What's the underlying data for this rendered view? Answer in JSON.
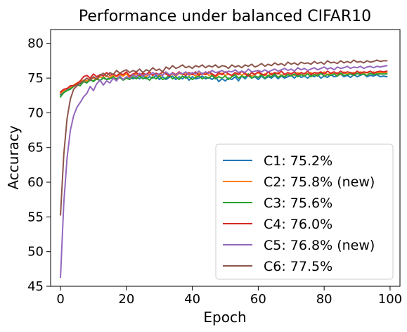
{
  "chart_data": {
    "type": "line",
    "title": "Performance under balanced CIFAR10",
    "xlabel": "Epoch",
    "ylabel": "Accuracy",
    "xlim": [
      -3,
      103
    ],
    "ylim": [
      45,
      82
    ],
    "xticks": [
      0,
      20,
      40,
      60,
      80,
      100
    ],
    "yticks": [
      45,
      50,
      55,
      60,
      65,
      70,
      75,
      80
    ],
    "xtick_labels": [
      "0",
      "20",
      "40",
      "60",
      "80",
      "100"
    ],
    "ytick_labels": [
      "45",
      "50",
      "55",
      "60",
      "65",
      "70",
      "75",
      "80"
    ],
    "grid": false,
    "legend_position": "lower-right",
    "series": [
      {
        "name": "C1: 75.2%",
        "color": "#1f77b4",
        "x": [
          0,
          1,
          2,
          3,
          4,
          5,
          6,
          7,
          8,
          9,
          10,
          11,
          12,
          13,
          14,
          15,
          16,
          17,
          18,
          19,
          20,
          21,
          22,
          23,
          24,
          25,
          26,
          27,
          28,
          29,
          30,
          31,
          32,
          33,
          34,
          35,
          36,
          37,
          38,
          39,
          40,
          41,
          42,
          43,
          44,
          45,
          46,
          47,
          48,
          49,
          50,
          51,
          52,
          53,
          54,
          55,
          56,
          57,
          58,
          59,
          60,
          61,
          62,
          63,
          64,
          65,
          66,
          67,
          68,
          69,
          70,
          71,
          72,
          73,
          74,
          75,
          76,
          77,
          78,
          79,
          80,
          81,
          82,
          83,
          84,
          85,
          86,
          87,
          88,
          89,
          90,
          91,
          92,
          93,
          94,
          95,
          96,
          97,
          98,
          99
        ],
        "y": [
          72.6,
          73.0,
          73.3,
          73.6,
          73.9,
          74.1,
          74.2,
          74.5,
          74.4,
          74.7,
          74.6,
          74.9,
          74.7,
          75.0,
          74.8,
          75.1,
          74.9,
          74.9,
          75.2,
          74.8,
          75.0,
          75.3,
          74.9,
          75.2,
          74.9,
          75.3,
          74.9,
          75.2,
          75.0,
          75.4,
          74.8,
          75.2,
          74.8,
          75.1,
          75.3,
          74.8,
          75.2,
          74.9,
          75.3,
          74.7,
          75.2,
          74.9,
          75.0,
          75.3,
          74.9,
          75.1,
          74.8,
          75.2,
          74.5,
          74.9,
          74.6,
          75.0,
          74.8,
          75.2,
          74.6,
          75.3,
          74.9,
          75.4,
          75.0,
          75.2,
          74.8,
          75.3,
          74.9,
          75.2,
          75.0,
          75.4,
          74.9,
          75.3,
          75.0,
          75.2,
          75.4,
          75.0,
          75.5,
          75.1,
          75.3,
          75.0,
          75.4,
          75.2,
          75.5,
          75.0,
          75.3,
          75.1,
          75.5,
          75.2,
          75.3,
          75.6,
          75.2,
          75.4,
          75.1,
          75.5,
          75.2,
          75.4,
          75.6,
          75.2,
          75.4,
          75.3,
          75.5,
          75.2,
          75.3,
          75.2
        ]
      },
      {
        "name": "C2: 75.8% (new)",
        "color": "#ff7f0e",
        "x": [
          0,
          1,
          2,
          3,
          4,
          5,
          6,
          7,
          8,
          9,
          10,
          11,
          12,
          13,
          14,
          15,
          16,
          17,
          18,
          19,
          20,
          21,
          22,
          23,
          24,
          25,
          26,
          27,
          28,
          29,
          30,
          31,
          32,
          33,
          34,
          35,
          36,
          37,
          38,
          39,
          40,
          41,
          42,
          43,
          44,
          45,
          46,
          47,
          48,
          49,
          50,
          51,
          52,
          53,
          54,
          55,
          56,
          57,
          58,
          59,
          60,
          61,
          62,
          63,
          64,
          65,
          66,
          67,
          68,
          69,
          70,
          71,
          72,
          73,
          74,
          75,
          76,
          77,
          78,
          79,
          80,
          81,
          82,
          83,
          84,
          85,
          86,
          87,
          88,
          89,
          90,
          91,
          92,
          93,
          94,
          95,
          96,
          97,
          98,
          99
        ],
        "y": [
          72.8,
          73.2,
          73.5,
          73.7,
          74.0,
          74.3,
          74.5,
          74.7,
          74.6,
          74.9,
          75.0,
          74.8,
          75.2,
          75.0,
          75.3,
          75.1,
          75.4,
          75.2,
          75.5,
          75.3,
          75.6,
          75.1,
          75.4,
          75.6,
          75.3,
          75.5,
          75.2,
          75.6,
          75.4,
          75.7,
          75.2,
          75.5,
          75.8,
          75.4,
          75.6,
          75.3,
          75.7,
          75.5,
          75.8,
          75.4,
          75.6,
          75.3,
          75.7,
          75.5,
          75.8,
          75.4,
          75.6,
          75.2,
          75.5,
          75.7,
          75.4,
          75.6,
          75.3,
          75.5,
          75.8,
          75.4,
          75.7,
          75.5,
          75.3,
          75.6,
          75.8,
          75.4,
          75.6,
          75.3,
          75.7,
          75.5,
          75.8,
          75.4,
          75.6,
          75.5,
          75.7,
          75.4,
          75.8,
          75.5,
          75.7,
          75.6,
          75.8,
          75.5,
          75.7,
          75.6,
          75.9,
          75.5,
          75.7,
          75.6,
          75.8,
          75.5,
          75.9,
          75.6,
          75.7,
          75.8,
          75.6,
          75.9,
          75.7,
          75.8,
          75.6,
          75.9,
          75.7,
          75.8,
          75.8,
          75.8
        ]
      },
      {
        "name": "C3: 75.6%",
        "color": "#2ca02c",
        "x": [
          0,
          1,
          2,
          3,
          4,
          5,
          6,
          7,
          8,
          9,
          10,
          11,
          12,
          13,
          14,
          15,
          16,
          17,
          18,
          19,
          20,
          21,
          22,
          23,
          24,
          25,
          26,
          27,
          28,
          29,
          30,
          31,
          32,
          33,
          34,
          35,
          36,
          37,
          38,
          39,
          40,
          41,
          42,
          43,
          44,
          45,
          46,
          47,
          48,
          49,
          50,
          51,
          52,
          53,
          54,
          55,
          56,
          57,
          58,
          59,
          60,
          61,
          62,
          63,
          64,
          65,
          66,
          67,
          68,
          69,
          70,
          71,
          72,
          73,
          74,
          75,
          76,
          77,
          78,
          79,
          80,
          81,
          82,
          83,
          84,
          85,
          86,
          87,
          88,
          89,
          90,
          91,
          92,
          93,
          94,
          95,
          96,
          97,
          98,
          99
        ],
        "y": [
          72.3,
          72.9,
          73.2,
          73.4,
          73.8,
          74.1,
          73.9,
          74.5,
          74.3,
          74.8,
          74.5,
          74.9,
          74.6,
          75.1,
          74.8,
          74.9,
          75.2,
          74.8,
          75.1,
          74.7,
          75.0,
          74.8,
          75.2,
          74.9,
          75.3,
          74.9,
          75.1,
          74.7,
          75.2,
          74.9,
          75.3,
          74.8,
          75.0,
          75.4,
          74.9,
          75.2,
          74.8,
          75.3,
          75.0,
          75.2,
          74.8,
          75.1,
          75.3,
          74.9,
          75.2,
          75.0,
          75.4,
          74.9,
          75.2,
          75.0,
          75.3,
          74.8,
          75.2,
          75.5,
          75.0,
          75.3,
          75.1,
          75.6,
          75.0,
          75.3,
          75.1,
          75.5,
          75.0,
          75.4,
          75.2,
          75.6,
          75.1,
          75.4,
          75.2,
          75.5,
          75.3,
          75.6,
          75.2,
          75.5,
          75.3,
          75.6,
          75.2,
          75.5,
          75.3,
          75.7,
          75.3,
          75.5,
          75.4,
          75.6,
          75.3,
          75.7,
          75.4,
          75.5,
          75.6,
          75.4,
          75.7,
          75.5,
          75.6,
          75.4,
          75.7,
          75.5,
          75.6,
          75.6,
          75.6,
          75.6
        ]
      },
      {
        "name": "C4: 76.0%",
        "color": "#d62728",
        "x": [
          0,
          1,
          2,
          3,
          4,
          5,
          6,
          7,
          8,
          9,
          10,
          11,
          12,
          13,
          14,
          15,
          16,
          17,
          18,
          19,
          20,
          21,
          22,
          23,
          24,
          25,
          26,
          27,
          28,
          29,
          30,
          31,
          32,
          33,
          34,
          35,
          36,
          37,
          38,
          39,
          40,
          41,
          42,
          43,
          44,
          45,
          46,
          47,
          48,
          49,
          50,
          51,
          52,
          53,
          54,
          55,
          56,
          57,
          58,
          59,
          60,
          61,
          62,
          63,
          64,
          65,
          66,
          67,
          68,
          69,
          70,
          71,
          72,
          73,
          74,
          75,
          76,
          77,
          78,
          79,
          80,
          81,
          82,
          83,
          84,
          85,
          86,
          87,
          88,
          89,
          90,
          91,
          92,
          93,
          94,
          95,
          96,
          97,
          98,
          99
        ],
        "y": [
          73.0,
          73.4,
          73.5,
          73.9,
          73.9,
          74.2,
          74.6,
          75.2,
          75.4,
          75.0,
          75.6,
          75.2,
          75.5,
          75.3,
          75.8,
          75.4,
          75.6,
          75.3,
          75.7,
          75.5,
          75.9,
          75.3,
          75.6,
          75.8,
          75.4,
          75.7,
          75.5,
          75.9,
          75.4,
          75.7,
          75.5,
          75.9,
          75.6,
          75.3,
          75.8,
          75.5,
          75.9,
          75.6,
          75.4,
          75.8,
          75.5,
          75.9,
          75.4,
          75.7,
          75.5,
          75.9,
          75.6,
          75.3,
          75.8,
          75.5,
          75.9,
          75.6,
          75.4,
          75.8,
          75.5,
          76.0,
          75.6,
          75.3,
          75.8,
          75.5,
          75.9,
          75.6,
          75.4,
          75.9,
          75.5,
          75.8,
          75.6,
          76.0,
          75.5,
          75.8,
          75.6,
          75.9,
          75.5,
          75.8,
          75.6,
          76.0,
          75.5,
          75.8,
          75.7,
          75.9,
          75.6,
          76.0,
          75.7,
          75.9,
          75.6,
          76.0,
          75.7,
          75.9,
          75.8,
          75.6,
          76.0,
          75.7,
          75.9,
          75.8,
          76.0,
          75.7,
          75.9,
          76.0,
          75.9,
          76.0
        ]
      },
      {
        "name": "C5: 76.8% (new)",
        "color": "#9467bd",
        "x": [
          0,
          1,
          2,
          3,
          4,
          5,
          6,
          7,
          8,
          9,
          10,
          11,
          12,
          13,
          14,
          15,
          16,
          17,
          18,
          19,
          20,
          21,
          22,
          23,
          24,
          25,
          26,
          27,
          28,
          29,
          30,
          31,
          32,
          33,
          34,
          35,
          36,
          37,
          38,
          39,
          40,
          41,
          42,
          43,
          44,
          45,
          46,
          47,
          48,
          49,
          50,
          51,
          52,
          53,
          54,
          55,
          56,
          57,
          58,
          59,
          60,
          61,
          62,
          63,
          64,
          65,
          66,
          67,
          68,
          69,
          70,
          71,
          72,
          73,
          74,
          75,
          76,
          77,
          78,
          79,
          80,
          81,
          82,
          83,
          84,
          85,
          86,
          87,
          88,
          89,
          90,
          91,
          92,
          93,
          94,
          95,
          96,
          97,
          98,
          99
        ],
        "y": [
          46.3,
          57.0,
          63.5,
          67.5,
          69.6,
          70.8,
          71.5,
          72.3,
          72.8,
          73.8,
          73.2,
          74.2,
          74.7,
          74.0,
          74.6,
          74.3,
          75.0,
          74.6,
          75.3,
          74.8,
          75.2,
          75.0,
          75.5,
          75.2,
          75.7,
          75.3,
          75.6,
          75.4,
          75.8,
          75.5,
          75.6,
          75.4,
          75.9,
          75.5,
          75.7,
          75.4,
          75.8,
          75.6,
          75.9,
          75.5,
          75.8,
          75.6,
          76.0,
          75.6,
          75.9,
          75.7,
          76.1,
          75.8,
          75.9,
          76.1,
          75.8,
          76.0,
          75.9,
          76.2,
          75.8,
          76.0,
          75.8,
          76.3,
          75.9,
          76.0,
          76.1,
          75.9,
          76.2,
          75.9,
          76.1,
          76.3,
          76.0,
          76.2,
          76.4,
          76.1,
          76.3,
          76.0,
          76.5,
          76.2,
          76.4,
          76.1,
          76.3,
          76.5,
          76.2,
          76.4,
          76.6,
          76.3,
          76.5,
          76.2,
          76.6,
          76.4,
          76.5,
          76.7,
          76.4,
          76.6,
          76.5,
          76.7,
          76.4,
          76.6,
          76.7,
          76.5,
          76.7,
          76.6,
          76.7,
          76.8
        ]
      },
      {
        "name": "C6: 77.5%",
        "color": "#8c564b",
        "x": [
          0,
          1,
          2,
          3,
          4,
          5,
          6,
          7,
          8,
          9,
          10,
          11,
          12,
          13,
          14,
          15,
          16,
          17,
          18,
          19,
          20,
          21,
          22,
          23,
          24,
          25,
          26,
          27,
          28,
          29,
          30,
          31,
          32,
          33,
          34,
          35,
          36,
          37,
          38,
          39,
          40,
          41,
          42,
          43,
          44,
          45,
          46,
          47,
          48,
          49,
          50,
          51,
          52,
          53,
          54,
          55,
          56,
          57,
          58,
          59,
          60,
          61,
          62,
          63,
          64,
          65,
          66,
          67,
          68,
          69,
          70,
          71,
          72,
          73,
          74,
          75,
          76,
          77,
          78,
          79,
          80,
          81,
          82,
          83,
          84,
          85,
          86,
          87,
          88,
          89,
          90,
          91,
          92,
          93,
          94,
          95,
          96,
          97,
          98,
          99
        ],
        "y": [
          55.3,
          64.0,
          69.2,
          72.0,
          73.4,
          73.9,
          74.3,
          74.6,
          75.0,
          74.7,
          75.2,
          74.9,
          75.4,
          75.7,
          75.3,
          75.8,
          75.5,
          76.1,
          75.7,
          76.0,
          76.2,
          75.8,
          76.1,
          75.9,
          76.3,
          75.8,
          76.2,
          76.0,
          76.5,
          76.1,
          76.3,
          75.9,
          76.6,
          76.3,
          76.8,
          76.4,
          76.6,
          76.9,
          76.5,
          76.7,
          76.4,
          76.8,
          76.6,
          76.9,
          76.5,
          76.8,
          76.6,
          76.9,
          76.5,
          76.8,
          76.7,
          76.4,
          76.9,
          76.6,
          76.8,
          76.5,
          76.9,
          76.7,
          77.0,
          76.6,
          76.8,
          77.1,
          76.7,
          77.0,
          76.8,
          77.2,
          76.9,
          77.1,
          76.8,
          77.3,
          77.0,
          77.2,
          76.9,
          77.3,
          77.1,
          77.2,
          77.0,
          77.4,
          77.1,
          77.3,
          77.0,
          77.5,
          77.2,
          77.3,
          77.1,
          77.5,
          77.2,
          77.4,
          77.2,
          77.6,
          77.3,
          77.4,
          77.2,
          77.5,
          77.3,
          77.4,
          77.6,
          77.4,
          77.5,
          77.5
        ]
      }
    ]
  }
}
